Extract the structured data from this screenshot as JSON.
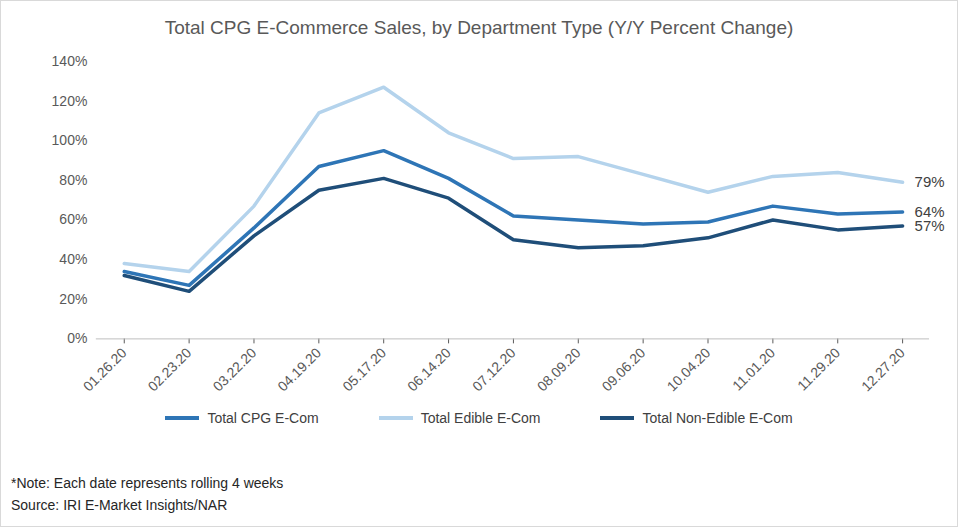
{
  "chart_data": {
    "type": "line",
    "title": "Total CPG E-Commerce Sales, by Department Type (Y/Y Percent Change)",
    "categories": [
      "01.26.20",
      "02.23.20",
      "03.22.20",
      "04.19.20",
      "05.17.20",
      "06.14.20",
      "07.12.20",
      "08.09.20",
      "09.06.20",
      "10.04.20",
      "11.01.20",
      "11.29.20",
      "12.27.20"
    ],
    "series": [
      {
        "name": "Total CPG E-Com",
        "color": "#2e75b6",
        "values": [
          34,
          27,
          56,
          87,
          95,
          81,
          62,
          60,
          58,
          59,
          67,
          63,
          64
        ],
        "value_labels": [
          null,
          null,
          null,
          null,
          null,
          null,
          null,
          null,
          null,
          null,
          null,
          null,
          "64%"
        ]
      },
      {
        "name": "Total Edible E-Com",
        "color": "#b4d3ec",
        "values": [
          38,
          34,
          67,
          114,
          127,
          104,
          91,
          92,
          83,
          74,
          82,
          84,
          79
        ],
        "value_labels": [
          null,
          null,
          null,
          null,
          null,
          null,
          null,
          null,
          null,
          null,
          null,
          null,
          "79%"
        ]
      },
      {
        "name": "Total Non-Edible E-Com",
        "color": "#1f4e79",
        "values": [
          32,
          24,
          52,
          75,
          81,
          71,
          50,
          46,
          47,
          51,
          60,
          55,
          57
        ],
        "value_labels": [
          null,
          null,
          null,
          null,
          null,
          null,
          null,
          null,
          null,
          null,
          null,
          null,
          "57%"
        ]
      }
    ],
    "ylim": [
      0,
      140
    ],
    "yticks": [
      {
        "value": 0,
        "label": "0%"
      },
      {
        "value": 20,
        "label": "20%"
      },
      {
        "value": 40,
        "label": "40%"
      },
      {
        "value": 60,
        "label": "60%"
      },
      {
        "value": 80,
        "label": "80%"
      },
      {
        "value": 100,
        "label": "100%"
      },
      {
        "value": 120,
        "label": "120%"
      },
      {
        "value": 140,
        "label": "140%"
      }
    ],
    "grid": false,
    "legend": "bottom",
    "notes": [
      "*Note: Each date represents rolling 4 weeks",
      "Source: IRI E-Market Insights/NAR"
    ]
  }
}
